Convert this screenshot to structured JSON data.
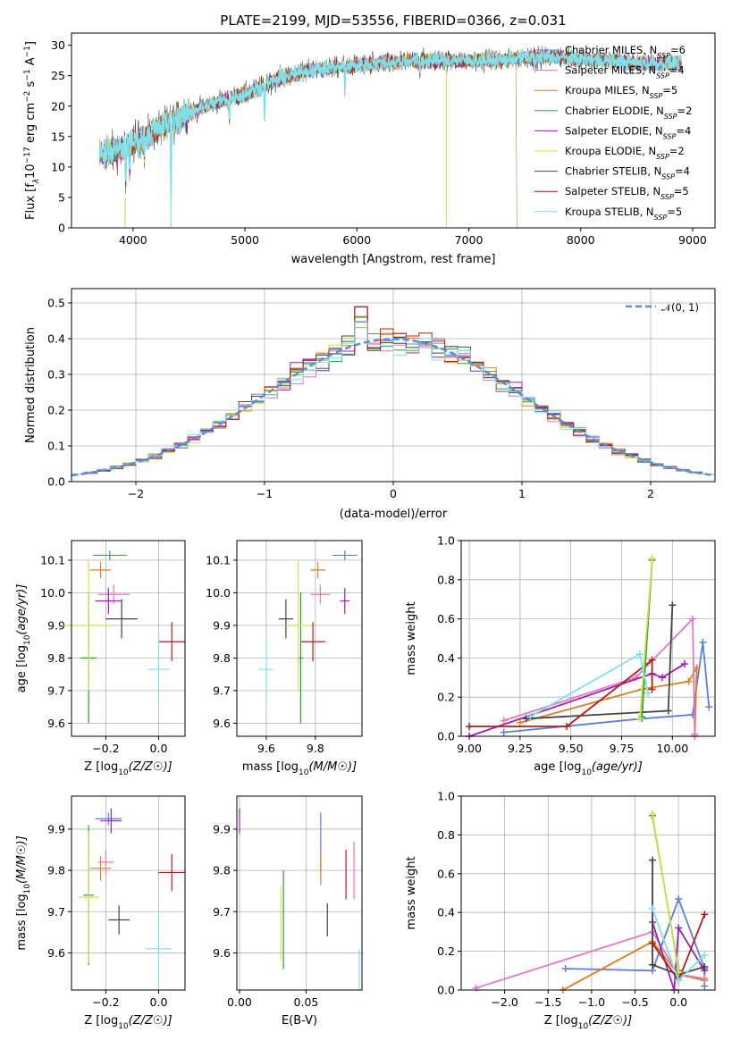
{
  "chart_data": [
    {
      "type": "line",
      "title": "PLATE=2199, MJD=53556, FIBERID=0366, z=0.031",
      "xlabel": "wavelength [Angstrom, rest frame]",
      "ylabel_parts": [
        "Flux [f",
        "λ",
        "10",
        "−17",
        " erg cm",
        "−2",
        " s",
        "−1",
        " A",
        "−1",
        "]"
      ],
      "xlim": [
        3450,
        9200
      ],
      "ylim": [
        0,
        32
      ],
      "xticks": [
        "4000",
        "5000",
        "6000",
        "7000",
        "8000",
        "9000"
      ],
      "yticks": [
        "0",
        "5",
        "10",
        "15",
        "20",
        "25",
        "30"
      ],
      "legend_position": "upper right",
      "series": [
        {
          "name": "Chabrier MILES",
          "nssp": "6",
          "color": "#5b7fdc"
        },
        {
          "name": "Salpeter MILES",
          "nssp": "4",
          "color": "#e377c2"
        },
        {
          "name": "Kroupa MILES",
          "nssp": "5",
          "color": "#d98020"
        },
        {
          "name": "Chabrier ELODIE",
          "nssp": "2",
          "color": "#2ca02c"
        },
        {
          "name": "Salpeter ELODIE",
          "nssp": "4",
          "color": "#9b1fb4"
        },
        {
          "name": "Kroupa ELODIE",
          "nssp": "2",
          "color": "#d4e157"
        },
        {
          "name": "Chabrier STELIB",
          "nssp": "4",
          "color": "#444444"
        },
        {
          "name": "Salpeter STELIB",
          "nssp": "5",
          "color": "#b01c1c"
        },
        {
          "name": "Kroupa STELIB",
          "nssp": "5",
          "color": "#80dfe8"
        }
      ],
      "continuum_anchors": {
        "x": [
          3700,
          3900,
          4100,
          4300,
          4500,
          4800,
          5000,
          5300,
          5600,
          5900,
          6200,
          6500,
          6800,
          7100,
          7300,
          7500,
          7800,
          8200,
          8600,
          8900
        ],
        "y": [
          12,
          13,
          15,
          17,
          19,
          21,
          22,
          24.5,
          26,
          26.5,
          27,
          27.5,
          27.5,
          27.5,
          27.5,
          28,
          28,
          27.5,
          27,
          27
        ]
      }
    },
    {
      "type": "bar",
      "subtype": "step-histogram",
      "xlabel": "(data-model)/error",
      "ylabel": "Normed distribution",
      "xlim": [
        -2.5,
        2.5
      ],
      "ylim": [
        0,
        0.54
      ],
      "xticks": [
        "−2",
        "−1",
        "0",
        "1",
        "2"
      ],
      "yticks": [
        "0.0",
        "0.1",
        "0.2",
        "0.3",
        "0.4",
        "0.5"
      ],
      "legend": [
        {
          "name": "𝒩(0, 1)",
          "color": "#5b8bd9",
          "style": "dashed"
        }
      ],
      "bins": {
        "start": -2.5,
        "width": 0.1,
        "count": 50
      },
      "reference_curve": {
        "mean": 0,
        "sigma": 1
      }
    },
    {
      "type": "scatter",
      "subtype": "errorbar",
      "xlabel": "Z [log10(Z/Z☉)]",
      "ylabel": "age  [log10(age/yr)]",
      "xlim": [
        -0.33,
        0.1
      ],
      "ylim": [
        9.56,
        10.16
      ],
      "xticks": [
        {
          "v": -0.2,
          "t": "−0.2"
        },
        {
          "v": 0.0,
          "t": "0.0"
        }
      ],
      "yticks": [
        {
          "v": 9.6,
          "t": "9.6"
        },
        {
          "v": 9.7,
          "t": "9.7"
        },
        {
          "v": 9.8,
          "t": "9.8"
        },
        {
          "v": 9.9,
          "t": "9.9"
        },
        {
          "v": 10.0,
          "t": "10.0"
        },
        {
          "v": 10.1,
          "t": "10.1"
        }
      ],
      "points": [
        {
          "c": "#5b7fdc",
          "x": -0.185,
          "xe": 0.065,
          "y": 10.115,
          "ye": 0.015
        },
        {
          "c": "#d98020",
          "x": -0.22,
          "xe": 0.04,
          "y": 10.07,
          "ye": 0.025
        },
        {
          "c": "#e377c2",
          "x": -0.17,
          "xe": 0.06,
          "y": 9.995,
          "ye": 0.03
        },
        {
          "c": "#9b1fb4",
          "x": -0.19,
          "xe": 0.05,
          "y": 9.975,
          "ye": 0.04
        },
        {
          "c": "#444444",
          "x": -0.14,
          "xe": 0.06,
          "y": 9.92,
          "ye": 0.06
        },
        {
          "c": "#b01c1c",
          "x": 0.05,
          "xe": 0.05,
          "y": 9.85,
          "ye": 0.06
        },
        {
          "c": "#2ca02c",
          "x": -0.265,
          "xe": 0.03,
          "y": 9.8,
          "ye": 0.2
        },
        {
          "c": "#d4e157",
          "x": -0.265,
          "xe": 0.1,
          "y": 9.9,
          "ye": 0.2
        },
        {
          "c": "#80dfe8",
          "x": 0.0,
          "xe": 0.04,
          "y": 9.765,
          "ye": 0.1
        }
      ]
    },
    {
      "type": "scatter",
      "subtype": "errorbar",
      "xlabel": "mass [log10(M/M☉)]",
      "ylabel": "",
      "xlim": [
        9.48,
        9.99
      ],
      "ylim": [
        9.56,
        10.16
      ],
      "xticks": [
        {
          "v": 9.6,
          "t": "9.6"
        },
        {
          "v": 9.8,
          "t": "9.8"
        }
      ],
      "yticks": [
        {
          "v": 9.6,
          "t": "9.6"
        },
        {
          "v": 9.7,
          "t": "9.7"
        },
        {
          "v": 9.8,
          "t": "9.8"
        },
        {
          "v": 9.9,
          "t": "9.9"
        },
        {
          "v": 10.0,
          "t": "10.0"
        },
        {
          "v": 10.1,
          "t": "10.1"
        }
      ],
      "points": [
        {
          "c": "#5b7fdc",
          "x": 9.92,
          "xe": 0.05,
          "y": 10.115,
          "ye": 0.015
        },
        {
          "c": "#d98020",
          "x": 9.81,
          "xe": 0.03,
          "y": 10.07,
          "ye": 0.025
        },
        {
          "c": "#e377c2",
          "x": 9.82,
          "xe": 0.04,
          "y": 9.995,
          "ye": 0.03
        },
        {
          "c": "#9b1fb4",
          "x": 9.92,
          "xe": 0.02,
          "y": 9.975,
          "ye": 0.04
        },
        {
          "c": "#444444",
          "x": 9.68,
          "xe": 0.03,
          "y": 9.92,
          "ye": 0.06
        },
        {
          "c": "#b01c1c",
          "x": 9.79,
          "xe": 0.05,
          "y": 9.85,
          "ye": 0.06
        },
        {
          "c": "#2ca02c",
          "x": 9.74,
          "xe": 0.01,
          "y": 9.8,
          "ye": 0.2
        },
        {
          "c": "#d4e157",
          "x": 9.73,
          "xe": 0.05,
          "y": 9.9,
          "ye": 0.2
        },
        {
          "c": "#80dfe8",
          "x": 9.6,
          "xe": 0.03,
          "y": 9.765,
          "ye": 0.1
        }
      ]
    },
    {
      "type": "line",
      "xlabel": "age  [log10(age/yr)]",
      "ylabel": "mass weight",
      "xlim": [
        8.96,
        10.21
      ],
      "ylim": [
        0,
        1.0
      ],
      "xticks": [
        {
          "v": 9.0,
          "t": "9.00"
        },
        {
          "v": 9.25,
          "t": "9.25"
        },
        {
          "v": 9.5,
          "t": "9.50"
        },
        {
          "v": 9.75,
          "t": "9.75"
        },
        {
          "v": 10.0,
          "t": "10.00"
        }
      ],
      "yticks": [
        {
          "v": 0,
          "t": "0.0"
        },
        {
          "v": 0.2,
          "t": "0.2"
        },
        {
          "v": 0.4,
          "t": "0.4"
        },
        {
          "v": 0.6,
          "t": "0.6"
        },
        {
          "v": 0.8,
          "t": "0.8"
        },
        {
          "v": 1.0,
          "t": "1.0"
        }
      ],
      "series": [
        {
          "c": "#5b7fdc",
          "pts": [
            [
              9.17,
              0.02
            ],
            [
              9.85,
              0.09
            ],
            [
              10.1,
              0.11
            ],
            [
              10.15,
              0.48
            ],
            [
              10.18,
              0.15
            ]
          ]
        },
        {
          "c": "#d98020",
          "pts": [
            [
              9.25,
              0.07
            ],
            [
              9.85,
              0.24
            ],
            [
              10.08,
              0.28
            ],
            [
              10.12,
              0.35
            ],
            [
              10.11,
              0.0
            ]
          ]
        },
        {
          "c": "#e377c2",
          "pts": [
            [
              9.17,
              0.08
            ],
            [
              9.82,
              0.3
            ],
            [
              10.1,
              0.6
            ],
            [
              10.11,
              0.01
            ]
          ]
        },
        {
          "c": "#9b1fb4",
          "pts": [
            [
              9.0,
              0.0
            ],
            [
              9.9,
              0.32
            ],
            [
              9.95,
              0.3
            ],
            [
              10.06,
              0.37
            ]
          ]
        },
        {
          "c": "#444444",
          "pts": [
            [
              9.28,
              0.09
            ],
            [
              9.98,
              0.13
            ],
            [
              10.0,
              0.67
            ]
          ]
        },
        {
          "c": "#b01c1c",
          "pts": [
            [
              9.0,
              0.05
            ],
            [
              9.48,
              0.05
            ],
            [
              9.9,
              0.39
            ],
            [
              9.9,
              0.24
            ]
          ]
        },
        {
          "c": "#2ca02c",
          "pts": [
            [
              9.85,
              0.1
            ],
            [
              9.9,
              0.9
            ]
          ]
        },
        {
          "c": "#d4e157",
          "pts": [
            [
              9.84,
              0.09
            ],
            [
              9.9,
              0.91
            ]
          ]
        },
        {
          "c": "#80dfe8",
          "pts": [
            [
              9.3,
              0.1
            ],
            [
              9.84,
              0.42
            ],
            [
              9.88,
              0.22
            ]
          ]
        }
      ]
    },
    {
      "type": "scatter",
      "subtype": "errorbar",
      "xlabel": "Z [log10(Z/Z☉)]",
      "ylabel": "mass [log10(M/M☉)]",
      "xlim": [
        -0.33,
        0.1
      ],
      "ylim": [
        9.51,
        9.98
      ],
      "xticks": [
        {
          "v": -0.2,
          "t": "−0.2"
        },
        {
          "v": 0.0,
          "t": "0.0"
        }
      ],
      "yticks": [
        {
          "v": 9.6,
          "t": "9.6"
        },
        {
          "v": 9.7,
          "t": "9.7"
        },
        {
          "v": 9.8,
          "t": "9.8"
        },
        {
          "v": 9.9,
          "t": "9.9"
        }
      ],
      "points": [
        {
          "c": "#5b7fdc",
          "x": -0.19,
          "xe": 0.05,
          "y": 9.925,
          "ye": 0.015
        },
        {
          "c": "#d98020",
          "x": -0.22,
          "xe": 0.04,
          "y": 9.805,
          "ye": 0.03
        },
        {
          "c": "#e377c2",
          "x": -0.2,
          "xe": 0.03,
          "y": 9.82,
          "ye": 0.03
        },
        {
          "c": "#9b1fb4",
          "x": -0.18,
          "xe": 0.04,
          "y": 9.92,
          "ye": 0.03
        },
        {
          "c": "#444444",
          "x": -0.15,
          "xe": 0.04,
          "y": 9.68,
          "ye": 0.035
        },
        {
          "c": "#b01c1c",
          "x": 0.05,
          "xe": 0.05,
          "y": 9.795,
          "ye": 0.045
        },
        {
          "c": "#2ca02c",
          "x": -0.265,
          "xe": 0.02,
          "y": 9.74,
          "ye": 0.17
        },
        {
          "c": "#d4e157",
          "x": -0.265,
          "xe": 0.04,
          "y": 9.735,
          "ye": 0.16
        },
        {
          "c": "#80dfe8",
          "x": 0.0,
          "xe": 0.05,
          "y": 9.61,
          "ye": 0.09
        }
      ]
    },
    {
      "type": "scatter",
      "subtype": "errorbar",
      "xlabel": "E(B-V)",
      "ylabel": "",
      "xlim": [
        -0.002,
        0.092
      ],
      "ylim": [
        9.51,
        9.98
      ],
      "xticks": [
        {
          "v": 0.0,
          "t": "0.00"
        },
        {
          "v": 0.05,
          "t": "0.05"
        }
      ],
      "yticks": [
        {
          "v": 9.6,
          "t": "9.6"
        },
        {
          "v": 9.7,
          "t": "9.7"
        },
        {
          "v": 9.8,
          "t": "9.8"
        },
        {
          "v": 9.9,
          "t": "9.9"
        }
      ],
      "points": [
        {
          "c": "#5b7fdc",
          "x": 0.061,
          "xe": 0,
          "y": 9.87,
          "ye": 0.07
        },
        {
          "c": "#d98020",
          "x": 0.061,
          "xe": 0,
          "y": 9.805,
          "ye": 0.04
        },
        {
          "c": "#e377c2",
          "x": 0.086,
          "xe": 0,
          "y": 9.8,
          "ye": 0.07
        },
        {
          "c": "#9b1fb4",
          "x": 0.0,
          "xe": 0,
          "y": 9.92,
          "ye": 0.03
        },
        {
          "c": "#444444",
          "x": 0.066,
          "xe": 0,
          "y": 9.68,
          "ye": 0.04
        },
        {
          "c": "#b01c1c",
          "x": 0.08,
          "xe": 0,
          "y": 9.79,
          "ye": 0.06
        },
        {
          "c": "#2ca02c",
          "x": 0.033,
          "xe": 0,
          "y": 9.68,
          "ye": 0.12
        },
        {
          "c": "#d4e157",
          "x": 0.031,
          "xe": 0,
          "y": 9.67,
          "ye": 0.09
        },
        {
          "c": "#80dfe8",
          "x": 0.09,
          "xe": 0,
          "y": 9.56,
          "ye": 0.05
        }
      ]
    },
    {
      "type": "line",
      "xlabel": "Z [log10(Z/Z☉)]",
      "ylabel": "mass weight",
      "xlim": [
        -2.5,
        0.42
      ],
      "ylim": [
        0,
        1.0
      ],
      "xticks": [
        {
          "v": -2.0,
          "t": "−2.0"
        },
        {
          "v": -1.5,
          "t": "−1.5"
        },
        {
          "v": -1.0,
          "t": "−1.0"
        },
        {
          "v": -0.5,
          "t": "−0.5"
        },
        {
          "v": 0.0,
          "t": "0.0"
        }
      ],
      "yticks": [
        {
          "v": 0,
          "t": "0.0"
        },
        {
          "v": 0.2,
          "t": "0.2"
        },
        {
          "v": 0.4,
          "t": "0.4"
        },
        {
          "v": 0.6,
          "t": "0.6"
        },
        {
          "v": 0.8,
          "t": "0.8"
        },
        {
          "v": 1.0,
          "t": "1.0"
        }
      ],
      "series": [
        {
          "c": "#5b7fdc",
          "pts": [
            [
              -1.3,
              0.11
            ],
            [
              -0.3,
              0.1
            ],
            [
              0.0,
              0.47
            ],
            [
              0.3,
              0.11
            ],
            [
              0.3,
              0.02
            ]
          ]
        },
        {
          "c": "#d98020",
          "pts": [
            [
              -1.33,
              0.0
            ],
            [
              -0.3,
              0.25
            ],
            [
              0.0,
              0.08
            ],
            [
              0.3,
              0.05
            ]
          ]
        },
        {
          "c": "#e377c2",
          "pts": [
            [
              -2.33,
              0.01
            ],
            [
              -0.3,
              0.3
            ],
            [
              0.0,
              0.08
            ],
            [
              0.3,
              0.06
            ]
          ]
        },
        {
          "c": "#9b1fb4",
          "pts": [
            [
              -0.3,
              0.35
            ],
            [
              -0.05,
              0.0
            ],
            [
              0.0,
              0.32
            ],
            [
              0.3,
              0.1
            ]
          ]
        },
        {
          "c": "#444444",
          "pts": [
            [
              -0.3,
              0.67
            ],
            [
              -0.3,
              0.13
            ],
            [
              0.0,
              0.08
            ],
            [
              0.3,
              0.12
            ]
          ]
        },
        {
          "c": "#b01c1c",
          "pts": [
            [
              -0.3,
              0.24
            ],
            [
              0.0,
              0.05
            ],
            [
              0.3,
              0.39
            ]
          ]
        },
        {
          "c": "#2ca02c",
          "pts": [
            [
              -0.3,
              0.9
            ],
            [
              0.0,
              0.1
            ]
          ]
        },
        {
          "c": "#d4e157",
          "pts": [
            [
              -0.3,
              0.91
            ],
            [
              0.0,
              0.09
            ]
          ]
        },
        {
          "c": "#80dfe8",
          "pts": [
            [
              -0.3,
              0.42
            ],
            [
              0.0,
              0.05
            ],
            [
              0.3,
              0.18
            ]
          ]
        }
      ]
    }
  ]
}
